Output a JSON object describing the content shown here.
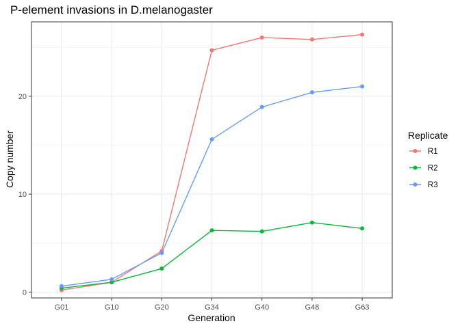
{
  "chart_data": {
    "type": "line",
    "title": "P-element invasions in D.melanogaster",
    "xlabel": "Generation",
    "ylabel": "Copy number",
    "categories": [
      "G01",
      "G10",
      "G20",
      "G34",
      "G40",
      "G48",
      "G63"
    ],
    "ylim": [
      -0.6,
      27.6
    ],
    "yticks": [
      0,
      10,
      20
    ],
    "grid": true,
    "legend": {
      "title": "Replicate",
      "position": "right"
    },
    "series": [
      {
        "name": "R1",
        "color": "#F8766D",
        "values": [
          0.2,
          1.0,
          4.2,
          24.7,
          26.0,
          25.8,
          26.3
        ]
      },
      {
        "name": "R2",
        "color": "#00BA38",
        "values": [
          0.4,
          1.0,
          2.4,
          6.3,
          6.2,
          7.1,
          6.5
        ]
      },
      {
        "name": "R3",
        "color": "#619CFF",
        "values": [
          0.6,
          1.3,
          4.0,
          15.6,
          18.9,
          20.4,
          21.0
        ]
      }
    ]
  }
}
